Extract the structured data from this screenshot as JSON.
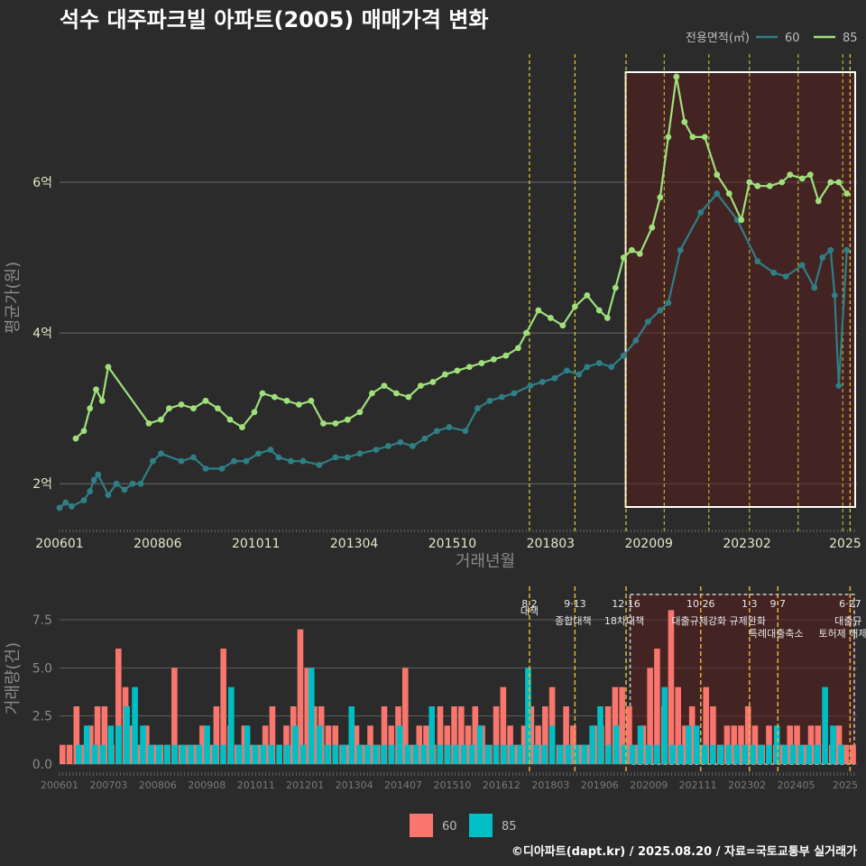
{
  "header": {
    "title": "석수 대주파크빌 아파트(2005) 매매가격 변화",
    "caption": "©디아파트(dapt.kr) / 2025.08.20 / 자료=국토교통부 실거래가"
  },
  "legend_top": {
    "title": "전용면적(㎡)",
    "items": [
      {
        "label": "60",
        "color": "#2f7f86"
      },
      {
        "label": "85",
        "color": "#9fe07a"
      }
    ]
  },
  "legend_bottom": {
    "items": [
      {
        "label": "60",
        "color": "#f8766d"
      },
      {
        "label": "85",
        "color": "#00bfc4"
      }
    ]
  },
  "chart_data": [
    {
      "type": "line",
      "ylabel": "평균가(원)",
      "xlabel": "거래년월",
      "x_ticks": [
        "200601",
        "200806",
        "201011",
        "201304",
        "201510",
        "201803",
        "202009",
        "202302",
        "2025"
      ],
      "y_ticks": [
        {
          "value": 2,
          "label": "2억"
        },
        {
          "value": 4,
          "label": "4억"
        },
        {
          "value": 6,
          "label": "6억"
        }
      ],
      "ylim": [
        1.5,
        7.7
      ],
      "xlim": [
        2006.0,
        2025.65
      ],
      "highlight_range": [
        2019.95,
        2025.65
      ],
      "policy_lines": [
        2017.58,
        2018.7,
        2019.96,
        2020.9,
        2022.0,
        2023.0,
        2024.2,
        2025.3,
        2025.48
      ],
      "series": [
        {
          "name": "60",
          "x": [
            2006.0,
            2006.15,
            2006.3,
            2006.6,
            2006.75,
            2006.85,
            2006.95,
            2007.2,
            2007.4,
            2007.6,
            2007.8,
            2008.0,
            2008.3,
            2008.5,
            2009.0,
            2009.3,
            2009.6,
            2010.0,
            2010.3,
            2010.6,
            2010.9,
            2011.2,
            2011.4,
            2011.7,
            2012.0,
            2012.4,
            2012.8,
            2013.1,
            2013.4,
            2013.8,
            2014.1,
            2014.4,
            2014.7,
            2015.0,
            2015.3,
            2015.6,
            2016.0,
            2016.3,
            2016.6,
            2016.9,
            2017.2,
            2017.6,
            2017.9,
            2018.2,
            2018.5,
            2018.8,
            2019.0,
            2019.3,
            2019.6,
            2019.9,
            2020.2,
            2020.5,
            2020.8,
            2021.0,
            2021.3,
            2021.8,
            2022.2,
            2022.7,
            2023.2,
            2023.6,
            2023.9,
            2024.3,
            2024.6,
            2024.8,
            2025.0,
            2025.1,
            2025.2,
            2025.4
          ],
          "y": [
            1.68,
            1.75,
            1.7,
            1.78,
            1.9,
            2.05,
            2.12,
            1.85,
            2.0,
            1.92,
            2.0,
            2.0,
            2.3,
            2.4,
            2.3,
            2.35,
            2.2,
            2.2,
            2.3,
            2.3,
            2.4,
            2.45,
            2.35,
            2.3,
            2.3,
            2.25,
            2.35,
            2.35,
            2.4,
            2.45,
            2.5,
            2.55,
            2.5,
            2.6,
            2.7,
            2.75,
            2.7,
            3.0,
            3.1,
            3.15,
            3.2,
            3.3,
            3.35,
            3.4,
            3.5,
            3.45,
            3.55,
            3.6,
            3.55,
            3.7,
            3.9,
            4.15,
            4.3,
            4.4,
            5.1,
            5.6,
            5.85,
            5.5,
            4.95,
            4.8,
            4.75,
            4.9,
            4.6,
            5.0,
            5.1,
            4.5,
            3.3,
            5.1
          ]
        },
        {
          "name": "85",
          "x": [
            2006.4,
            2006.6,
            2006.75,
            2006.9,
            2007.05,
            2007.2,
            2008.2,
            2008.5,
            2008.7,
            2009.0,
            2009.3,
            2009.6,
            2009.9,
            2010.2,
            2010.5,
            2010.8,
            2011.0,
            2011.3,
            2011.6,
            2011.9,
            2012.2,
            2012.5,
            2012.8,
            2013.1,
            2013.4,
            2013.7,
            2014.0,
            2014.3,
            2014.6,
            2014.9,
            2015.2,
            2015.5,
            2015.8,
            2016.1,
            2016.4,
            2016.7,
            2017.0,
            2017.3,
            2017.5,
            2017.8,
            2018.1,
            2018.4,
            2018.7,
            2019.0,
            2019.3,
            2019.5,
            2019.7,
            2019.9,
            2020.1,
            2020.3,
            2020.6,
            2020.8,
            2021.0,
            2021.2,
            2021.4,
            2021.6,
            2021.9,
            2022.2,
            2022.5,
            2022.8,
            2023.0,
            2023.2,
            2023.5,
            2023.8,
            2024.0,
            2024.3,
            2024.5,
            2024.7,
            2025.0,
            2025.2,
            2025.4
          ],
          "y": [
            2.6,
            2.7,
            3.0,
            3.25,
            3.1,
            3.55,
            2.8,
            2.85,
            3.0,
            3.05,
            3.0,
            3.1,
            3.0,
            2.85,
            2.75,
            2.95,
            3.2,
            3.15,
            3.1,
            3.05,
            3.1,
            2.8,
            2.8,
            2.85,
            2.95,
            3.2,
            3.3,
            3.2,
            3.15,
            3.3,
            3.35,
            3.45,
            3.5,
            3.55,
            3.6,
            3.65,
            3.7,
            3.8,
            4.0,
            4.3,
            4.2,
            4.1,
            4.35,
            4.5,
            4.3,
            4.2,
            4.6,
            5.0,
            5.1,
            5.05,
            5.4,
            5.8,
            6.6,
            7.4,
            6.8,
            6.6,
            6.6,
            6.1,
            5.85,
            5.5,
            6.0,
            5.95,
            5.95,
            6.0,
            6.1,
            6.05,
            6.1,
            5.75,
            6.0,
            6.0,
            5.85
          ]
        }
      ]
    },
    {
      "type": "bar",
      "ylabel": "거래량(건)",
      "x_ticks": [
        "200601",
        "200703",
        "200806",
        "200908",
        "201011",
        "201201",
        "201304",
        "201407",
        "201510",
        "201612",
        "201803",
        "201906",
        "202009",
        "202111",
        "202302",
        "202405",
        "2025"
      ],
      "y_ticks": [
        0,
        2.5,
        5,
        7.5
      ],
      "y_tick_labels": [
        "0.0",
        "2.5",
        "5.0",
        "7.5"
      ],
      "ylim": [
        0,
        9
      ],
      "events": [
        {
          "x": 2017.58,
          "date": "8·2",
          "label": "대책"
        },
        {
          "x": 2018.7,
          "date": "9·13",
          "label": "종합대책"
        },
        {
          "x": 2019.96,
          "date": "12·16",
          "label": "18차대책"
        },
        {
          "x": 2021.8,
          "date": "10·26",
          "label": "대출규제강화"
        },
        {
          "x": 2023.0,
          "date": "1·3",
          "label": "규제완화"
        },
        {
          "x": 2023.7,
          "date": "9·7",
          "label": "특례대출축소"
        },
        {
          "x": 2025.48,
          "date": "6·27",
          "label": "대출규"
        },
        {
          "x": 2025.35,
          "date": "",
          "label": "토허제 해제"
        }
      ],
      "series": [
        {
          "name": "60",
          "values": [
            1,
            1,
            3,
            1,
            2,
            3,
            3,
            1,
            6,
            4,
            2,
            1,
            2,
            1,
            1,
            1,
            5,
            1,
            1,
            1,
            2,
            1,
            3,
            6,
            2,
            1,
            2,
            1,
            1,
            2,
            3,
            1,
            2,
            3,
            7,
            5,
            3,
            3,
            2,
            2,
            1,
            1,
            2,
            1,
            2,
            1,
            3,
            2,
            3,
            5,
            1,
            2,
            2,
            1,
            3,
            2,
            3,
            3,
            2,
            3,
            2,
            1,
            3,
            4,
            2,
            1,
            2,
            3,
            2,
            3,
            4,
            1,
            3,
            2,
            1,
            1,
            2,
            2,
            3,
            4,
            4,
            3,
            1,
            2,
            5,
            6,
            3,
            8,
            4,
            2,
            3,
            1,
            4,
            3,
            1,
            2,
            2,
            2,
            3,
            2,
            1,
            2,
            1,
            1,
            2,
            2,
            1,
            2,
            2,
            1,
            1,
            2,
            1,
            1
          ]
        },
        {
          "name": "85",
          "values": [
            1,
            2,
            1,
            1,
            2,
            2,
            3,
            4,
            2,
            1,
            1,
            1,
            1,
            1,
            1,
            1,
            2,
            1,
            1,
            4,
            1,
            2,
            1,
            1,
            1,
            1,
            1,
            2,
            1,
            5,
            2,
            1,
            1,
            1,
            3,
            1,
            1,
            1,
            1,
            1,
            2,
            1,
            1,
            1,
            3,
            1,
            1,
            1,
            1,
            1,
            2,
            1,
            1,
            1,
            1,
            1,
            5,
            1,
            1,
            2,
            1,
            1,
            1,
            1,
            2,
            3,
            1,
            2,
            1,
            1,
            2,
            1,
            1,
            4,
            1,
            1,
            2,
            2,
            1,
            1,
            1,
            1,
            1,
            1,
            1,
            1,
            1,
            2,
            1,
            1,
            1,
            1,
            1,
            4,
            2,
            1
          ]
        }
      ]
    }
  ]
}
